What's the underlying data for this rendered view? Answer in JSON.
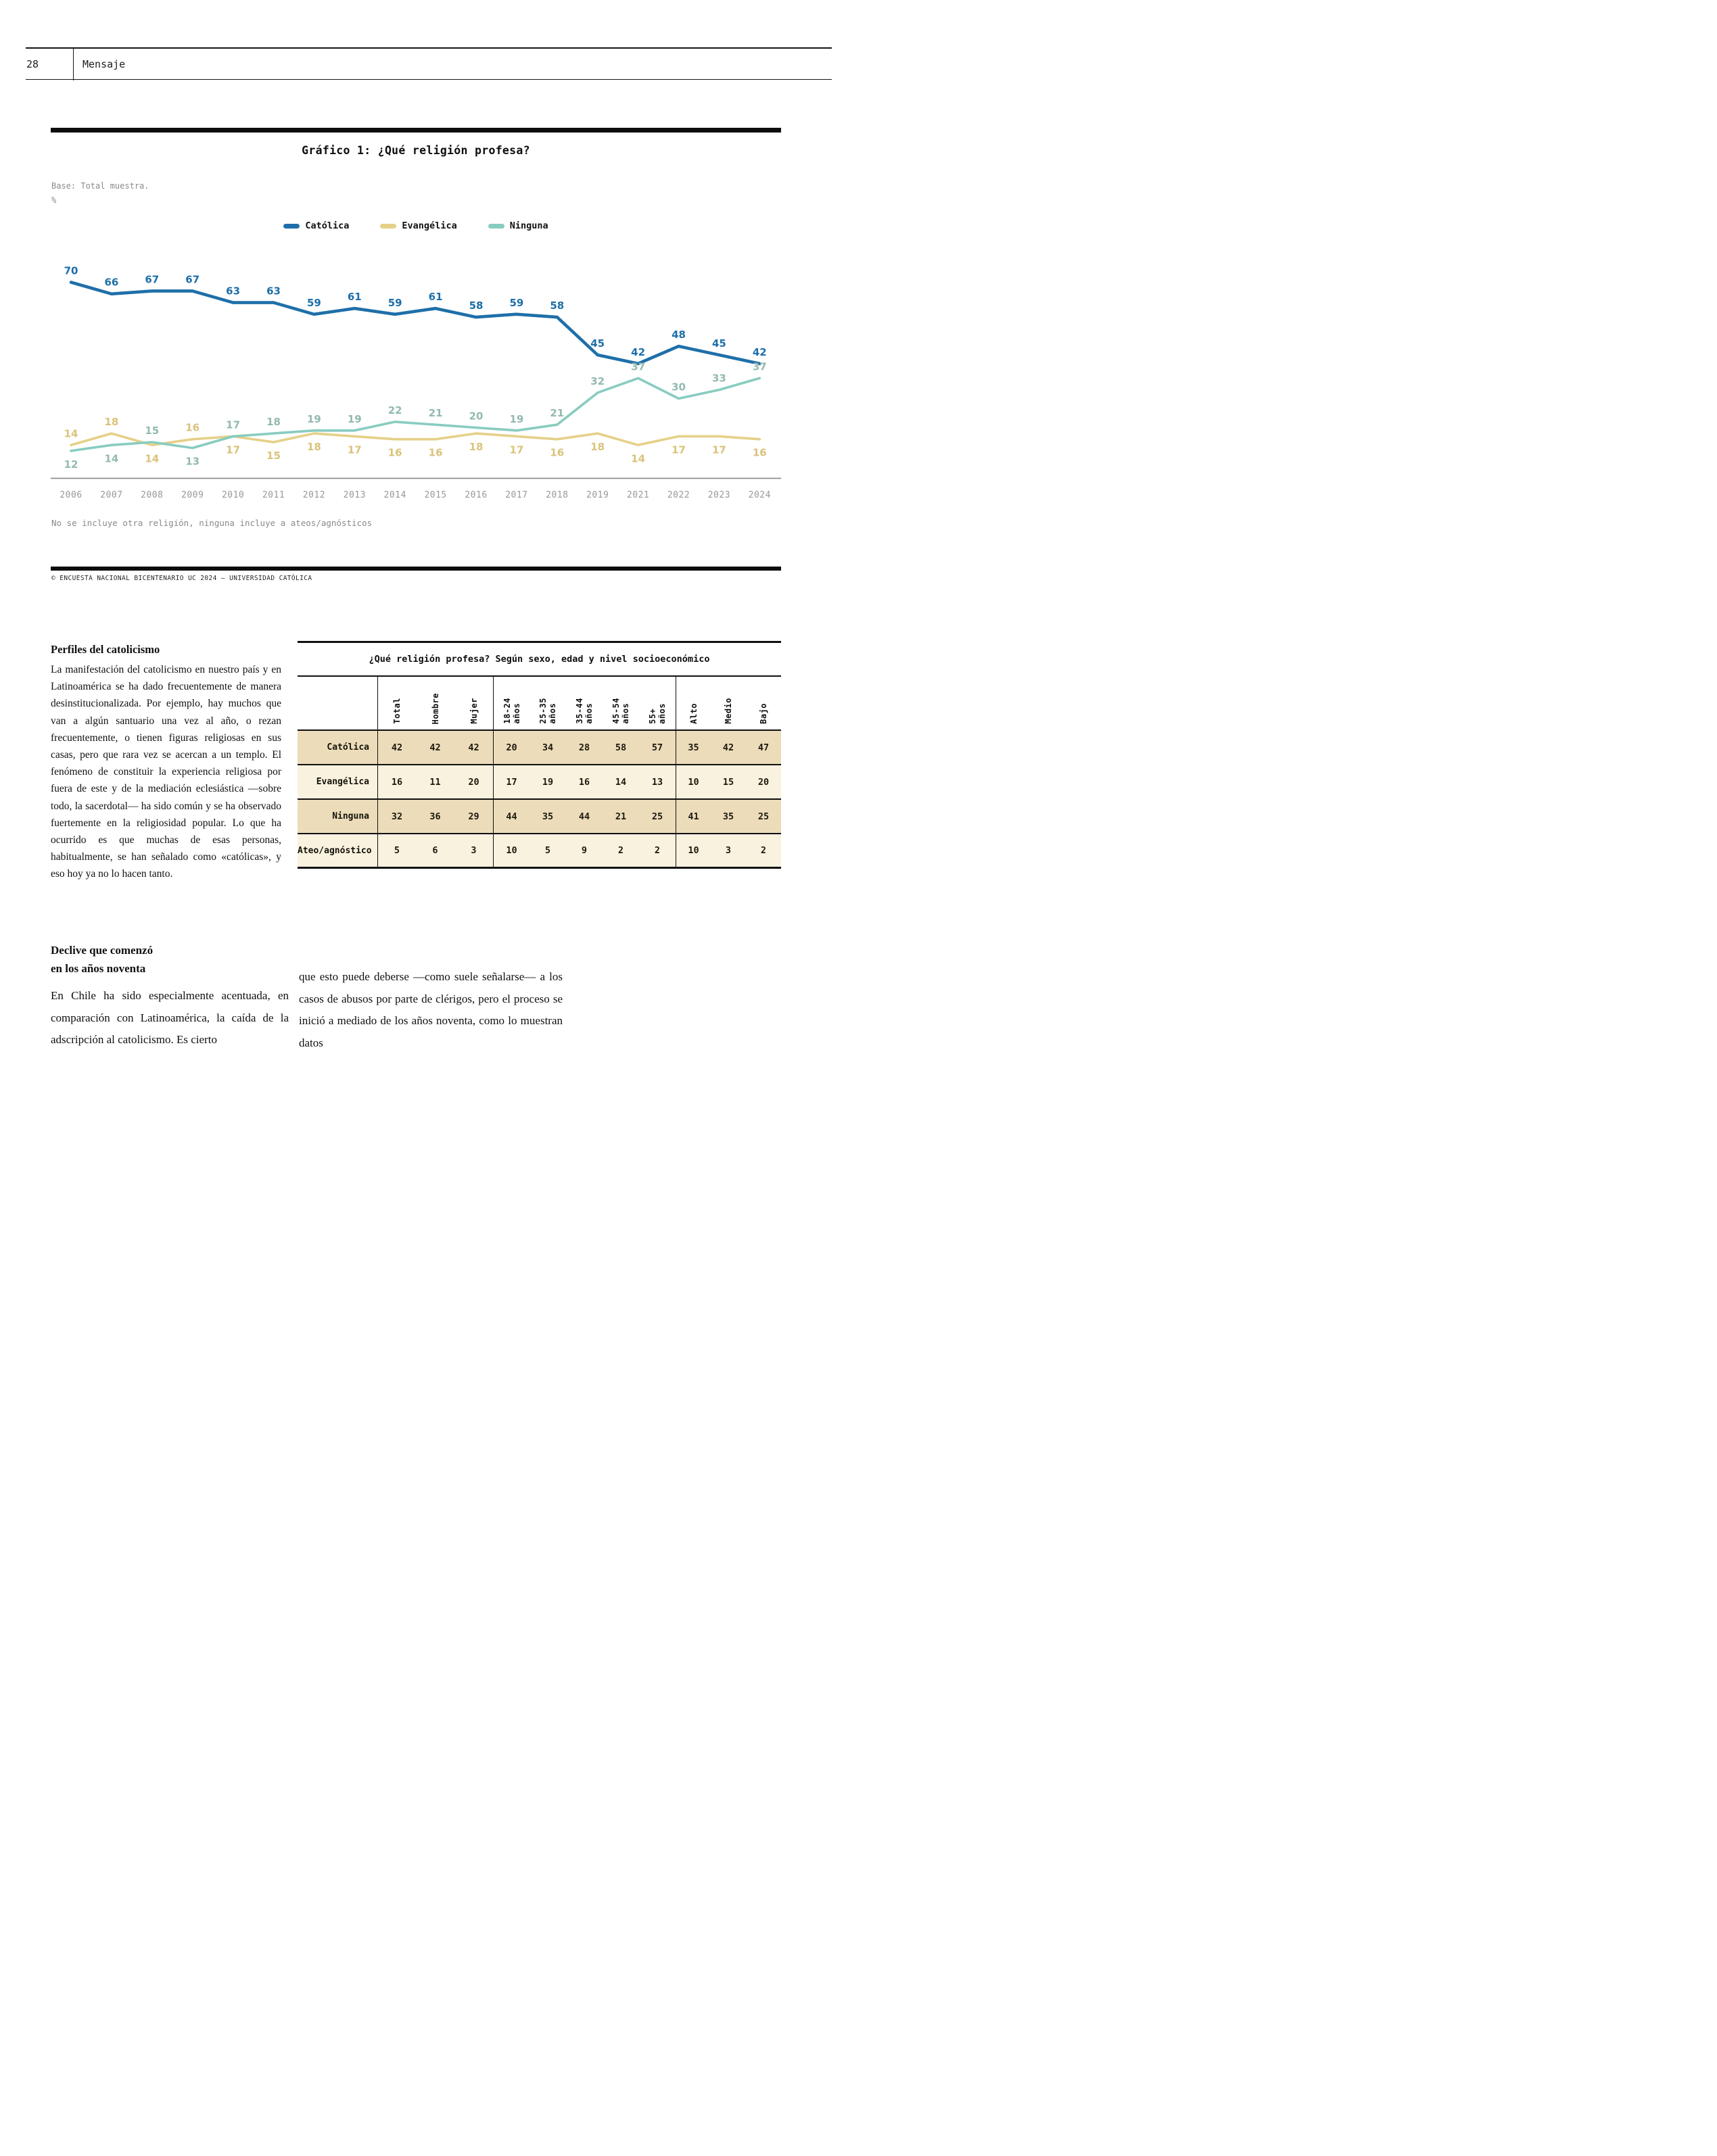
{
  "page": {
    "number": "28",
    "section": "Mensaje"
  },
  "chart": {
    "title": "Gráfico 1: ¿Qué religión profesa?",
    "base_note": "Base: Total muestra.",
    "unit": "%",
    "note": "No se incluye otra religión, ninguna incluye a ateos/agnósticos",
    "source": "© ENCUESTA NACIONAL BICENTENARIO UC 2024 – UNIVERSIDAD CATÓLICA"
  },
  "chart_data": {
    "type": "line",
    "x": [
      "2006",
      "2007",
      "2008",
      "2009",
      "2010",
      "2011",
      "2012",
      "2013",
      "2014",
      "2015",
      "2016",
      "2017",
      "2018",
      "2019",
      "2021",
      "2022",
      "2023",
      "2024"
    ],
    "series": [
      {
        "name": "Católica",
        "color": "#1e6fa9",
        "label_color": "#1e6fa9",
        "values": [
          70,
          66,
          67,
          67,
          63,
          63,
          59,
          61,
          59,
          61,
          58,
          59,
          58,
          45,
          42,
          48,
          45,
          42
        ],
        "label_side": [
          "a",
          "a",
          "a",
          "a",
          "a",
          "a",
          "a",
          "a",
          "a",
          "a",
          "a",
          "a",
          "a",
          "a",
          "a",
          "a",
          "a",
          "a"
        ]
      },
      {
        "name": "Evangélica",
        "color": "#e5d088",
        "label_color": "#d9c37a",
        "values": [
          14,
          18,
          14,
          16,
          17,
          15,
          18,
          17,
          16,
          16,
          18,
          17,
          16,
          18,
          14,
          17,
          17,
          16
        ],
        "label_side": [
          "a",
          "a",
          "b",
          "a",
          "b",
          "b",
          "b",
          "b",
          "b",
          "b",
          "b",
          "b",
          "b",
          "b",
          "b",
          "b",
          "b",
          "b"
        ]
      },
      {
        "name": "Ninguna",
        "color": "#88ccc0",
        "label_color": "#93b9b1",
        "values": [
          12,
          14,
          15,
          13,
          17,
          18,
          19,
          19,
          22,
          21,
          20,
          19,
          21,
          32,
          37,
          30,
          33,
          37
        ],
        "label_side": [
          "b",
          "b",
          "a",
          "b",
          "a",
          "a",
          "a",
          "a",
          "a",
          "a",
          "a",
          "a",
          "a",
          "a",
          "a",
          "a",
          "a",
          "a"
        ]
      }
    ],
    "title": "Gráfico 1: ¿Qué religión profesa?",
    "xlabel": "",
    "ylabel": "%",
    "ylim": [
      0,
      80
    ],
    "grid": false,
    "legend_position": "top"
  },
  "table": {
    "title": "¿Qué religión profesa? Según sexo, edad y nivel socioeconómico",
    "columns": [
      "Total",
      "Hombre",
      "Mujer",
      "18-24\naños",
      "25-35\naños",
      "35-44\naños",
      "45-54\naños",
      "55+\naños",
      "Alto",
      "Medio",
      "Bajo"
    ],
    "rows": [
      {
        "label": "Católica",
        "values": [
          42,
          42,
          42,
          20,
          34,
          28,
          58,
          57,
          35,
          42,
          47
        ]
      },
      {
        "label": "Evangélica",
        "values": [
          16,
          11,
          20,
          17,
          19,
          16,
          14,
          13,
          10,
          15,
          20
        ]
      },
      {
        "label": "Ninguna",
        "values": [
          32,
          36,
          29,
          44,
          35,
          44,
          21,
          25,
          41,
          35,
          25
        ]
      },
      {
        "label": "Ateo/agnóstico",
        "values": [
          5,
          6,
          3,
          10,
          5,
          9,
          2,
          2,
          10,
          3,
          2
        ]
      }
    ]
  },
  "articles": {
    "profiles": {
      "heading": "Perfiles del catolicismo",
      "body": "La manifestación del catolicismo en nuestro país y en Latinoamérica se ha dado frecuentemente de manera desinstitucionalizada. Por ejemplo, hay muchos que van a algún santuario una vez al año, o rezan frecuentemente, o tienen figuras religiosas en sus casas, pero que rara vez se acercan a un templo. El fenómeno de constituir la experiencia religiosa por fuera de este y de la mediación eclesiástica —sobre todo, la sacerdotal— ha sido común y se ha observado fuertemente en la religiosidad popular. Lo que ha ocurrido es que muchas de esas personas, habitualmente, se han señalado como «católicas», y eso hoy ya no lo hacen tanto."
    },
    "decline": {
      "heading": "Declive que comenzó\nen los años noventa",
      "body_left": "En Chile ha sido especialmente acentuada, en comparación con Latinoamérica, la caída de la adscripción al catolicismo. Es cierto",
      "body_right": "que esto puede deberse —como suele señalarse— a los casos de abusos por parte de clérigos, pero el proceso se inició a mediado de los años noventa, como lo muestran datos"
    }
  }
}
